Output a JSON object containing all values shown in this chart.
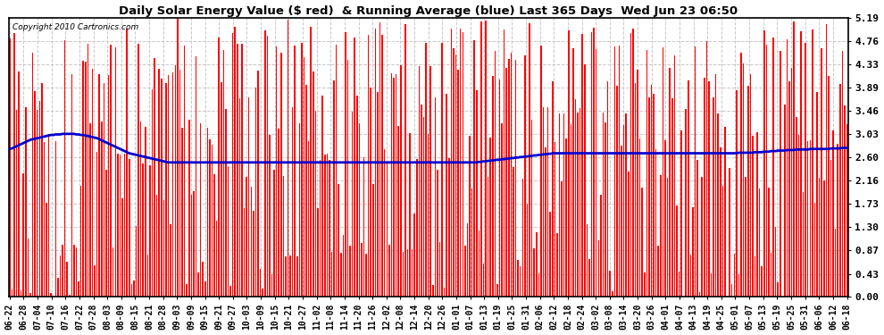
{
  "title": "Daily Solar Energy Value ($ red)  & Running Average (blue) Last 365 Days  Wed Jun 23 06:50",
  "copyright": "Copyright 2010 Cartronics.com",
  "yticks": [
    0.0,
    0.43,
    0.87,
    1.3,
    1.73,
    2.16,
    2.6,
    3.03,
    3.46,
    3.89,
    4.33,
    4.76,
    5.19
  ],
  "ymax": 5.19,
  "ymin": 0.0,
  "bar_color": "#ff0000",
  "avg_color": "#0000cc",
  "bg_color": "#ffffff",
  "grid_color": "#c8c8c8",
  "xtick_labels": [
    "06-22",
    "06-28",
    "07-04",
    "07-10",
    "07-16",
    "07-22",
    "07-28",
    "08-03",
    "08-09",
    "08-15",
    "08-21",
    "08-28",
    "09-03",
    "09-09",
    "09-15",
    "09-21",
    "09-27",
    "10-03",
    "10-09",
    "10-15",
    "10-21",
    "10-27",
    "11-02",
    "11-08",
    "11-14",
    "11-20",
    "11-26",
    "12-02",
    "12-08",
    "12-14",
    "12-20",
    "12-26",
    "01-01",
    "01-07",
    "01-13",
    "01-19",
    "01-25",
    "01-31",
    "02-06",
    "02-12",
    "02-18",
    "02-24",
    "03-02",
    "03-08",
    "03-14",
    "03-20",
    "03-26",
    "04-01",
    "04-07",
    "04-13",
    "04-19",
    "04-25",
    "05-01",
    "05-07",
    "05-13",
    "05-19",
    "05-25",
    "05-31",
    "06-06",
    "06-12",
    "06-18"
  ],
  "n_days": 365,
  "avg_line": [
    2.75,
    2.76,
    2.78,
    2.8,
    2.82,
    2.84,
    2.86,
    2.88,
    2.9,
    2.92,
    2.93,
    2.94,
    2.95,
    2.96,
    2.97,
    2.98,
    2.99,
    3.0,
    3.01,
    3.01,
    3.02,
    3.02,
    3.02,
    3.03,
    3.03,
    3.03,
    3.03,
    3.03,
    3.03,
    3.02,
    3.02,
    3.01,
    3.01,
    3.0,
    2.99,
    2.98,
    2.97,
    2.96,
    2.95,
    2.93,
    2.91,
    2.89,
    2.87,
    2.85,
    2.83,
    2.81,
    2.79,
    2.77,
    2.75,
    2.73,
    2.71,
    2.69,
    2.67,
    2.66,
    2.65,
    2.64,
    2.63,
    2.62,
    2.61,
    2.6,
    2.59,
    2.58,
    2.57,
    2.56,
    2.55,
    2.54,
    2.53,
    2.52,
    2.51,
    2.5,
    2.5,
    2.5,
    2.5,
    2.5,
    2.5,
    2.5,
    2.5,
    2.5,
    2.5,
    2.5,
    2.5,
    2.5,
    2.5,
    2.5,
    2.5,
    2.5,
    2.5,
    2.5,
    2.5,
    2.5,
    2.5,
    2.5,
    2.5,
    2.5,
    2.5,
    2.5,
    2.5,
    2.5,
    2.5,
    2.5,
    2.5,
    2.5,
    2.5,
    2.5,
    2.5,
    2.5,
    2.5,
    2.5,
    2.5,
    2.5,
    2.5,
    2.5,
    2.5,
    2.5,
    2.5,
    2.5,
    2.5,
    2.5,
    2.5,
    2.5,
    2.5,
    2.5,
    2.5,
    2.5,
    2.5,
    2.5,
    2.5,
    2.5,
    2.5,
    2.5,
    2.5,
    2.5,
    2.5,
    2.5,
    2.5,
    2.5,
    2.5,
    2.5,
    2.5,
    2.5,
    2.5,
    2.5,
    2.5,
    2.5,
    2.5,
    2.5,
    2.5,
    2.5,
    2.5,
    2.5,
    2.5,
    2.5,
    2.5,
    2.5,
    2.5,
    2.5,
    2.5,
    2.5,
    2.5,
    2.5,
    2.5,
    2.5,
    2.5,
    2.5,
    2.5,
    2.5,
    2.5,
    2.5,
    2.5,
    2.5,
    2.5,
    2.5,
    2.5,
    2.5,
    2.5,
    2.5,
    2.5,
    2.5,
    2.5,
    2.5,
    2.5,
    2.5,
    2.5,
    2.5,
    2.5,
    2.5,
    2.5,
    2.5,
    2.5,
    2.5,
    2.5,
    2.5,
    2.5,
    2.5,
    2.5,
    2.5,
    2.5,
    2.5,
    2.5,
    2.5,
    2.5,
    2.5,
    2.5,
    2.5,
    2.51,
    2.51,
    2.52,
    2.52,
    2.53,
    2.53,
    2.54,
    2.54,
    2.55,
    2.55,
    2.56,
    2.56,
    2.57,
    2.57,
    2.58,
    2.58,
    2.59,
    2.59,
    2.6,
    2.6,
    2.61,
    2.61,
    2.62,
    2.62,
    2.63,
    2.63,
    2.64,
    2.64,
    2.65,
    2.65,
    2.66,
    2.66,
    2.67,
    2.67,
    2.67,
    2.67,
    2.67,
    2.67,
    2.67,
    2.67,
    2.67,
    2.67,
    2.67,
    2.67,
    2.67,
    2.67,
    2.67,
    2.67,
    2.67,
    2.67,
    2.67,
    2.67,
    2.67,
    2.67,
    2.67,
    2.67,
    2.67,
    2.67,
    2.67,
    2.67,
    2.67,
    2.67,
    2.67,
    2.67,
    2.67,
    2.67,
    2.67,
    2.67,
    2.67,
    2.67,
    2.67,
    2.67,
    2.67,
    2.67,
    2.67,
    2.67,
    2.67,
    2.67,
    2.67,
    2.67,
    2.67,
    2.67,
    2.67,
    2.67,
    2.67,
    2.67,
    2.67,
    2.67,
    2.67,
    2.67,
    2.67,
    2.67,
    2.67,
    2.67,
    2.67,
    2.67,
    2.67,
    2.67,
    2.67,
    2.67,
    2.67,
    2.67,
    2.67,
    2.67,
    2.67,
    2.67,
    2.67,
    2.67,
    2.67,
    2.67,
    2.67,
    2.67,
    2.67,
    2.68,
    2.68,
    2.68,
    2.68,
    2.68,
    2.68,
    2.68,
    2.69,
    2.69,
    2.69,
    2.69,
    2.7,
    2.7,
    2.7,
    2.71,
    2.71,
    2.71,
    2.72,
    2.72,
    2.72,
    2.72,
    2.73,
    2.73,
    2.73,
    2.73,
    2.74,
    2.74,
    2.74,
    2.74,
    2.74,
    2.74,
    2.75,
    2.75,
    2.75,
    2.75,
    2.75,
    2.75,
    2.75,
    2.75,
    2.75,
    2.76,
    2.76,
    2.76,
    2.76,
    2.76,
    2.77,
    2.77,
    2.77
  ],
  "bar_seed": 1234,
  "bar_width": 0.6
}
